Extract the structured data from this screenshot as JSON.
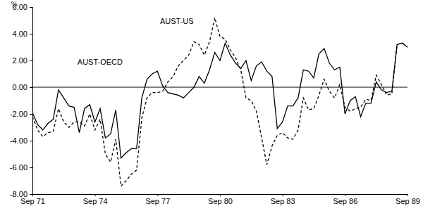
{
  "chart_data": {
    "type": "line",
    "y_label": "%",
    "categories": [
      "Sep 71",
      null,
      null,
      null,
      null,
      null,
      null,
      null,
      null,
      null,
      null,
      null,
      "Sep 74",
      null,
      null,
      null,
      null,
      null,
      null,
      null,
      null,
      null,
      null,
      null,
      "Sep 77",
      null,
      null,
      null,
      null,
      null,
      null,
      null,
      null,
      null,
      null,
      null,
      "Sep 80",
      null,
      null,
      null,
      null,
      null,
      null,
      null,
      null,
      null,
      null,
      null,
      "Sep 83",
      null,
      null,
      null,
      null,
      null,
      null,
      null,
      null,
      null,
      null,
      null,
      "Sep 86",
      null,
      null,
      null,
      null,
      null,
      null,
      null,
      null,
      null,
      null,
      null,
      "Sep 89"
    ],
    "series": [
      {
        "name": "AUST-OECD",
        "color": "#000000",
        "line_style": "solid",
        "values": [
          -1.9,
          -2.8,
          -3.2,
          -2.7,
          -2.4,
          -0.2,
          -0.8,
          -1.4,
          -1.5,
          -3.4,
          -1.6,
          -1.3,
          -2.6,
          -1.6,
          -3.8,
          -3.5,
          -1.7,
          -5.3,
          -4.9,
          -4.6,
          -4.6,
          -0.8,
          0.6,
          1.0,
          1.2,
          0.1,
          -0.4,
          -0.5,
          -0.6,
          -0.8,
          -0.4,
          0.0,
          0.8,
          0.3,
          1.3,
          2.6,
          2.0,
          3.3,
          2.4,
          1.8,
          1.4,
          2.0,
          0.5,
          1.6,
          1.9,
          1.2,
          0.8,
          -3.1,
          -2.6,
          -1.4,
          -1.4,
          -0.8,
          1.3,
          1.2,
          0.7,
          2.5,
          2.9,
          1.8,
          1.3,
          1.5,
          -2.0,
          -1.0,
          -0.7,
          -2.2,
          -1.2,
          -1.2,
          0.4,
          -0.2,
          -0.4,
          -0.3,
          3.2,
          3.3,
          3.0
        ]
      },
      {
        "name": "AUST-US",
        "color": "#000000",
        "line_style": "dashed",
        "values": [
          -2.2,
          -3.2,
          -3.7,
          -3.4,
          -3.3,
          -1.6,
          -2.6,
          -3.0,
          -2.6,
          -2.6,
          -2.9,
          -2.0,
          -3.2,
          -2.4,
          -5.0,
          -5.6,
          -3.9,
          -7.4,
          -7.0,
          -6.5,
          -6.2,
          -2.3,
          -0.8,
          -0.4,
          -0.4,
          -0.3,
          0.4,
          0.8,
          1.6,
          2.0,
          2.4,
          3.4,
          3.2,
          2.4,
          3.4,
          5.2,
          3.8,
          3.6,
          2.8,
          2.2,
          1.3,
          -0.8,
          -1.0,
          -1.8,
          -3.8,
          -5.8,
          -4.4,
          -3.6,
          -3.4,
          -3.8,
          -3.9,
          -3.2,
          -0.8,
          -1.7,
          -1.6,
          -0.6,
          0.6,
          -0.3,
          -0.8,
          0.2,
          -1.5,
          -1.8,
          -1.6,
          -1.5,
          -0.9,
          -1.0,
          0.9,
          0.2,
          -0.6,
          -0.5,
          3.2,
          3.3,
          3.0
        ]
      }
    ],
    "ylim": [
      -8,
      6
    ],
    "yticks": [
      {
        "value": -8,
        "label": "-8.00"
      },
      {
        "value": -6,
        "label": "-6.00"
      },
      {
        "value": -4,
        "label": "-4.00"
      },
      {
        "value": -2,
        "label": "-2.00"
      },
      {
        "value": 0,
        "label": "0.00"
      },
      {
        "value": 2,
        "label": "2.00"
      },
      {
        "value": 4,
        "label": "4.00"
      },
      {
        "value": 6,
        "label": "6.00"
      }
    ],
    "grid": false
  }
}
